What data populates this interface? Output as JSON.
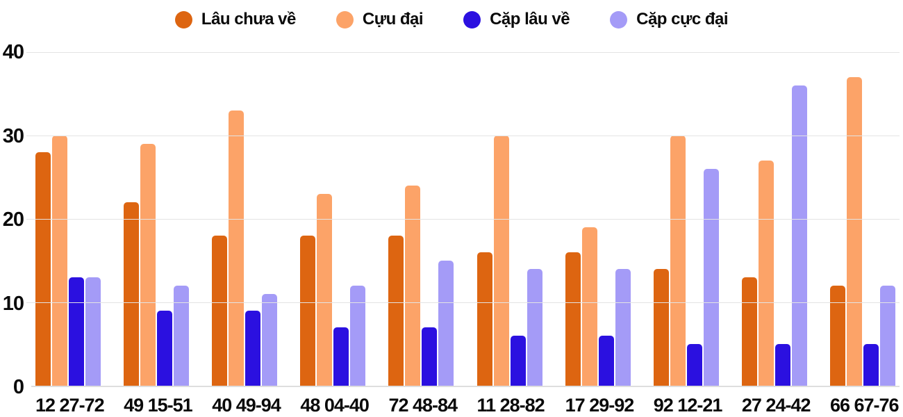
{
  "chart_data": {
    "type": "bar",
    "title": "",
    "xlabel": "",
    "ylabel": "",
    "categories": [
      "12 27-72",
      "49 15-51",
      "40 49-94",
      "48 04-40",
      "72 48-84",
      "11 28-82",
      "17 29-92",
      "92 12-21",
      "27 24-42",
      "66 67-76"
    ],
    "series": [
      {
        "name": "Lâu chưa về",
        "color": "#dd6511",
        "values": [
          28,
          22,
          18,
          18,
          18,
          16,
          16,
          14,
          13,
          12
        ]
      },
      {
        "name": "Cựu đại",
        "color": "#fca368",
        "values": [
          30,
          29,
          33,
          23,
          24,
          30,
          19,
          30,
          27,
          37
        ]
      },
      {
        "name": "Cặp lâu về",
        "color": "#2b10e0",
        "values": [
          13,
          9,
          9,
          7,
          7,
          6,
          6,
          5,
          5,
          5
        ]
      },
      {
        "name": "Cặp cực đại",
        "color": "#a49bf7",
        "values": [
          13,
          12,
          11,
          12,
          15,
          14,
          14,
          26,
          36,
          12
        ]
      }
    ],
    "ylim": [
      0,
      40
    ],
    "yticks": [
      0,
      10,
      20,
      30,
      40
    ],
    "grid": true,
    "legend_position": "top"
  },
  "styles": {
    "grid_color": "#e3e3e3",
    "axis_line_color": "#dedede",
    "text_color": "#0a0a0a",
    "background": "#ffffff"
  }
}
